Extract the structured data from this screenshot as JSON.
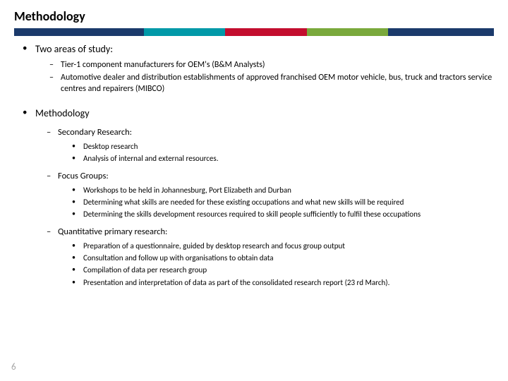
{
  "title": "Methodology",
  "ribbon": {
    "colors": [
      "#1b3a6b",
      "#0099a8",
      "#c30d2e",
      "#7aa93c",
      "#1b3a6b"
    ],
    "widths_pct": [
      27,
      17,
      17,
      17,
      22
    ]
  },
  "sections": {
    "areas": {
      "heading": "Two areas of study:",
      "items": [
        "Tier-1 component manufacturers for OEM's (B&M Analysts)",
        "Automotive dealer and distribution establishments of approved franchised OEM motor vehicle, bus, truck and tractors service centres and repairers (MIBCO)"
      ]
    },
    "method": {
      "heading": "Methodology",
      "groups": [
        {
          "title": "Secondary Research:",
          "items": [
            "Desktop research",
            "Analysis of internal and external resources."
          ]
        },
        {
          "title": "Focus Groups:",
          "items": [
            "Workshops to be held in Johannesburg, Port Elizabeth and Durban",
            "Determining what skills are needed for these existing occupations and what new skills will be required",
            "Determining the skills development resources required to skill people sufficiently to fulfil these occupations"
          ]
        },
        {
          "title": "Quantitative primary research:",
          "items": [
            "Preparation of a questionnaire, guided by desktop research and focus group output",
            "Consultation and follow up with organisations to obtain data",
            "Compilation of data per research group",
            "Presentation and interpretation of data as part of the consolidated research report (23 rd March)."
          ]
        }
      ]
    }
  },
  "page_number": "6",
  "styling": {
    "title_fontsize_pt": 18,
    "lvl1_fontsize_pt": 14,
    "lvl2_fontsize_pt": 12,
    "lvl3_fontsize_pt": 11,
    "text_color": "#000000",
    "pagenum_color": "#a6a6a6",
    "background_color": "#ffffff"
  }
}
